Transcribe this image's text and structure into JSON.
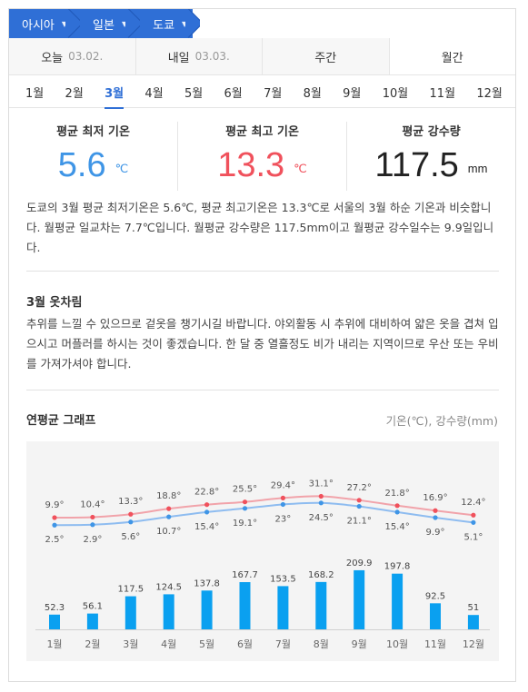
{
  "breadcrumb": [
    {
      "label": "아시아",
      "arrow": "▼"
    },
    {
      "label": "일본",
      "arrow": "▼"
    },
    {
      "label": "도쿄",
      "arrow": "▼"
    }
  ],
  "day_tabs": [
    {
      "label": "오늘",
      "date": "03.02."
    },
    {
      "label": "내일",
      "date": "03.03."
    },
    {
      "label": "주간",
      "date": ""
    },
    {
      "label": "월간",
      "date": ""
    }
  ],
  "month_tabs": [
    "1월",
    "2월",
    "3월",
    "4월",
    "5월",
    "6월",
    "7월",
    "8월",
    "9월",
    "10월",
    "11월",
    "12월"
  ],
  "selected_month_index": 2,
  "stats": {
    "min": {
      "label": "평균 최저 기온",
      "value": "5.6",
      "unit": "℃"
    },
    "max": {
      "label": "평균 최고 기온",
      "value": "13.3",
      "unit": "℃"
    },
    "rain": {
      "label": "평균 강수량",
      "value": "117.5",
      "unit": "mm"
    }
  },
  "description": "도쿄의 3월 평균 최저기온은 5.6℃, 평균 최고기온은 13.3℃로 서울의 3월 하순 기온과 비슷합니다. 월평균 일교차는 7.7℃입니다. 월평균 강수량은 117.5mm이고 월평균 강수일수는 9.9일입니다.",
  "clothing": {
    "title": "3월 옷차림",
    "text": "추위를 느낄 수 있으므로 겉옷을 챙기시길 바랍니다. 야외활동 시 추위에 대비하여 얇은 옷을 겹쳐 입으시고 머플러를 하시는 것이 좋겠습니다. 한 달 중 열흘정도 비가 내리는 지역이므로 우산 또는 우비를 가져가셔야 합니다."
  },
  "graph": {
    "title": "연평균 그래프",
    "units_label": "기온(℃), 강수량(mm)"
  },
  "colors": {
    "accent": "#2f6fd6",
    "high": "#f0515c",
    "low": "#3f95e6",
    "high_line": "#f1a3aa",
    "low_line": "#8ebcf0",
    "bar": "#0aa0f0"
  },
  "chart_data": {
    "type": "line",
    "categories": [
      "1월",
      "2월",
      "3월",
      "4월",
      "5월",
      "6월",
      "7월",
      "8월",
      "9월",
      "10월",
      "11월",
      "12월"
    ],
    "series": [
      {
        "kind": "line",
        "values": [
          9.9,
          10.4,
          13.3,
          18.8,
          22.8,
          25.5,
          29.4,
          31.1,
          27.2,
          21.8,
          16.9,
          12.4
        ],
        "labels": [
          "9.9°",
          "10.4°",
          "13.3°",
          "18.8°",
          "22.8°",
          "25.5°",
          "29.4°",
          "31.1°",
          "27.2°",
          "21.8°",
          "16.9°",
          "12.4°"
        ]
      },
      {
        "kind": "line",
        "values": [
          2.5,
          2.9,
          5.6,
          10.7,
          15.4,
          19.1,
          23,
          24.5,
          21.1,
          15.4,
          9.9,
          5.1
        ],
        "labels": [
          "2.5°",
          "2.9°",
          "5.6°",
          "10.7°",
          "15.4°",
          "19.1°",
          "23°",
          "24.5°",
          "21.1°",
          "15.4°",
          "9.9°",
          "5.1°"
        ]
      },
      {
        "kind": "bar",
        "values": [
          52.3,
          56.1,
          117.5,
          124.5,
          137.8,
          167.7,
          153.5,
          168.2,
          209.9,
          197.8,
          92.5,
          51
        ],
        "labels": [
          "52.3",
          "56.1",
          "117.5",
          "124.5",
          "137.8",
          "167.7",
          "153.5",
          "168.2",
          "209.9",
          "197.8",
          "92.5",
          "51"
        ]
      }
    ]
  }
}
